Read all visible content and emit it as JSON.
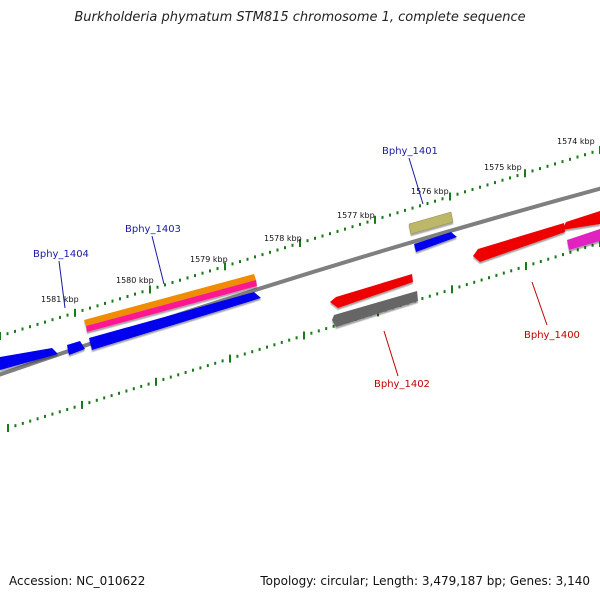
{
  "title": "Burkholderia phymatum STM815 chromosome 1, complete sequence",
  "footer": {
    "accession": "Accession: NC_010622",
    "summary": "Topology: circular; Length: 3,479,187 bp; Genes: 3,140"
  },
  "colors": {
    "backbone": "#7f7f7f",
    "tick": "#1a7a1a",
    "label_forward": "#1a1aa8",
    "label_reverse": "#c00000",
    "cds_blue": "#0000ee",
    "rna_orange": "#f08c00",
    "pink": "#ff1493",
    "khaki": "#bdb76b",
    "red": "#ee0000",
    "gray_gene": "#666666",
    "magenta": "#e020c0"
  },
  "scale_labels": [
    "1574 kbp",
    "1575 kbp",
    "1576 kbp",
    "1577 kbp",
    "1578 kbp",
    "1579 kbp",
    "1580 kbp",
    "1581 kbp"
  ],
  "gene_labels": [
    "Bphy_1401",
    "Bphy_1403",
    "Bphy_1404",
    "Bphy_1400",
    "Bphy_1402"
  ]
}
